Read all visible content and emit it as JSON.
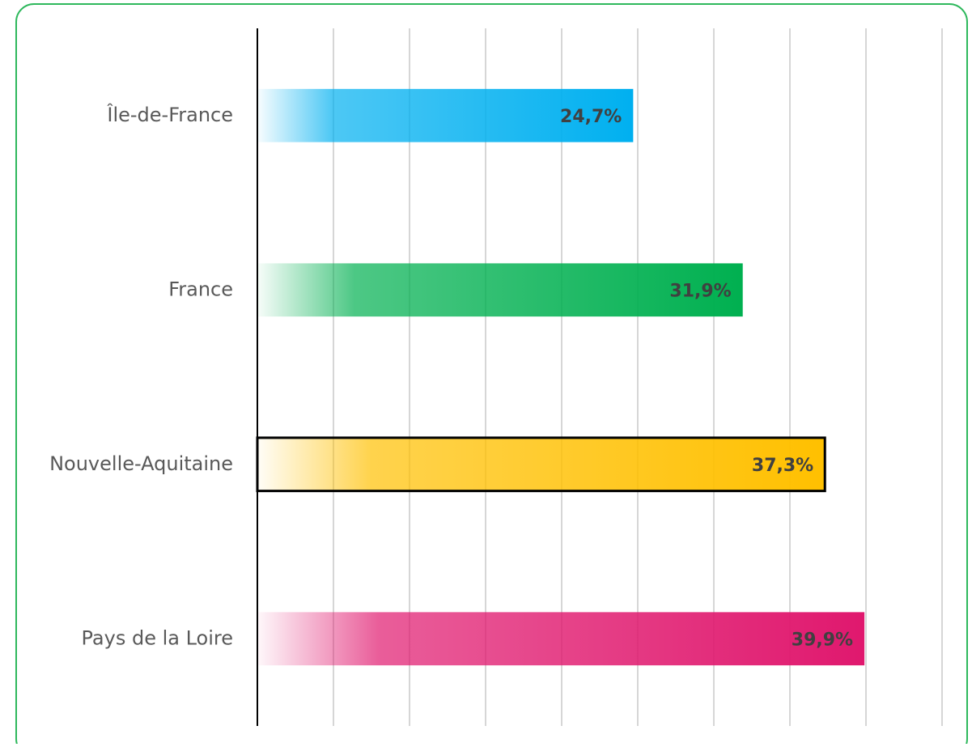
{
  "chart_data": {
    "type": "barh",
    "categories": [
      "Île-de-France",
      "France",
      "Nouvelle-Aquitaine",
      "Pays de la Loire"
    ],
    "values": [
      24.7,
      31.9,
      37.3,
      39.9
    ],
    "value_labels": [
      "24,7%",
      "31,9%",
      "37,3%",
      "39,9%"
    ],
    "colors": [
      "#00b0f0",
      "#00b050",
      "#ffc000",
      "#e0186e"
    ],
    "highlight": "Nouvelle-Aquitaine",
    "highlight_color": "#000000",
    "xlim": [
      0,
      45
    ],
    "xticks": [
      0,
      5,
      10,
      15,
      20,
      25,
      30,
      35,
      40,
      45
    ],
    "grid": true
  }
}
